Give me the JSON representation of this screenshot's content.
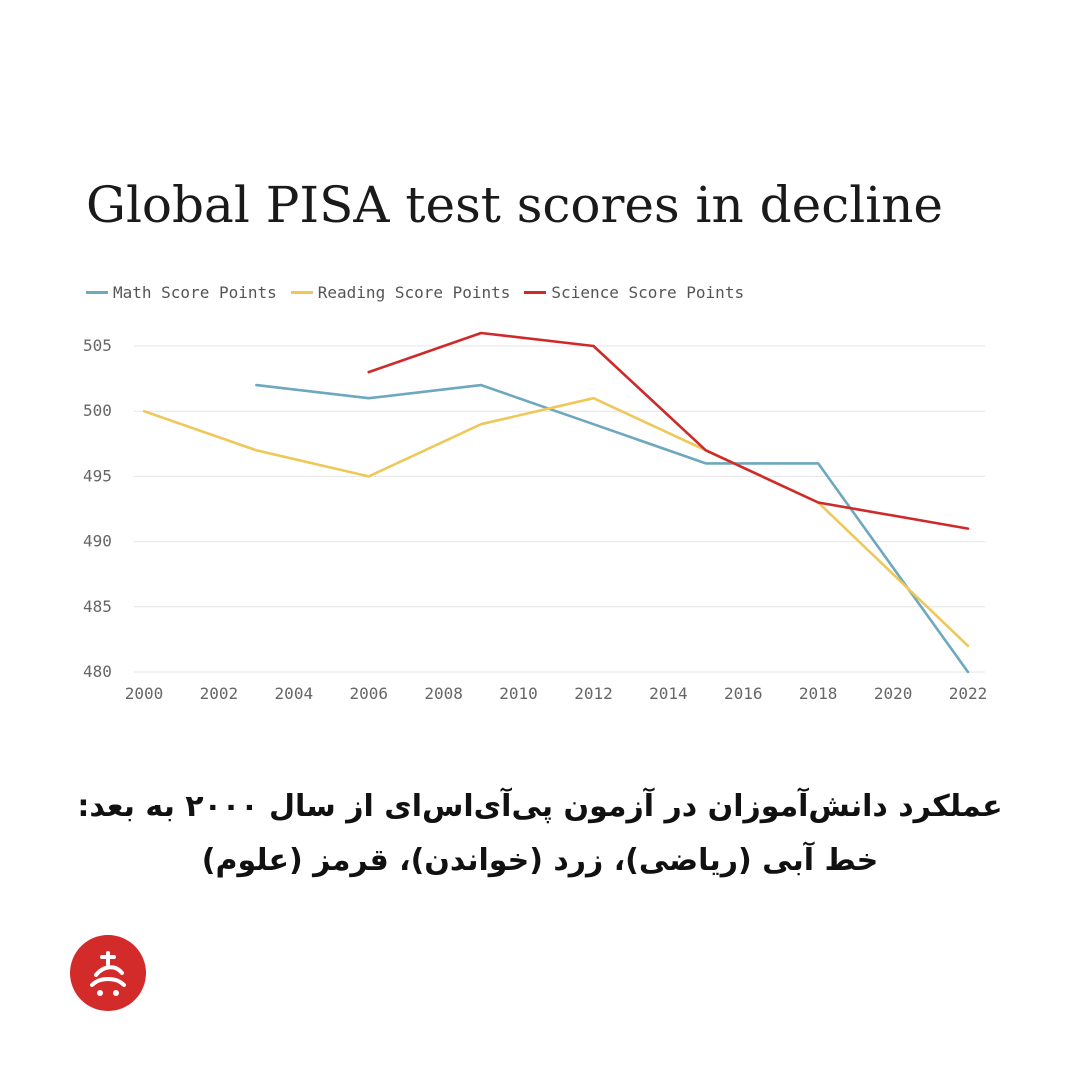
{
  "chart_data": {
    "type": "line",
    "title": "Global PISA test scores in decline",
    "x_ticks": [
      2000,
      2002,
      2004,
      2006,
      2008,
      2010,
      2012,
      2014,
      2016,
      2018,
      2020,
      2022
    ],
    "y_ticks": [
      480,
      485,
      490,
      495,
      500,
      505
    ],
    "xlim": [
      2000,
      2022
    ],
    "ylim": [
      480,
      506
    ],
    "grid": true,
    "legend_position": "top-left",
    "series": [
      {
        "name": "Math Score Points",
        "color": "#6ea8bf",
        "x": [
          2003,
          2006,
          2009,
          2012,
          2015,
          2018,
          2022
        ],
        "y": [
          502,
          501,
          502,
          499,
          496,
          496,
          480
        ]
      },
      {
        "name": "Reading Score Points",
        "color": "#efc85a",
        "x": [
          2000,
          2003,
          2006,
          2009,
          2012,
          2015,
          2018,
          2022
        ],
        "y": [
          500,
          497,
          495,
          499,
          501,
          497,
          493,
          482
        ]
      },
      {
        "name": "Science Score Points",
        "color": "#cf2a2a",
        "x": [
          2006,
          2009,
          2012,
          2015,
          2018,
          2022
        ],
        "y": [
          503,
          506,
          505,
          497,
          493,
          491
        ]
      }
    ]
  },
  "caption": {
    "line1": "عملکرد دانش‌آموزان در آزمون پی‌آی‌اس‌ای از سال ۲۰۰۰ به بعد:",
    "line2": "خط آبی (ریاضی)، زرد (خواندن)، قرمز (علوم)"
  },
  "logo": {
    "icon": "publisher-logo-icon",
    "color": "#d32a2a"
  }
}
